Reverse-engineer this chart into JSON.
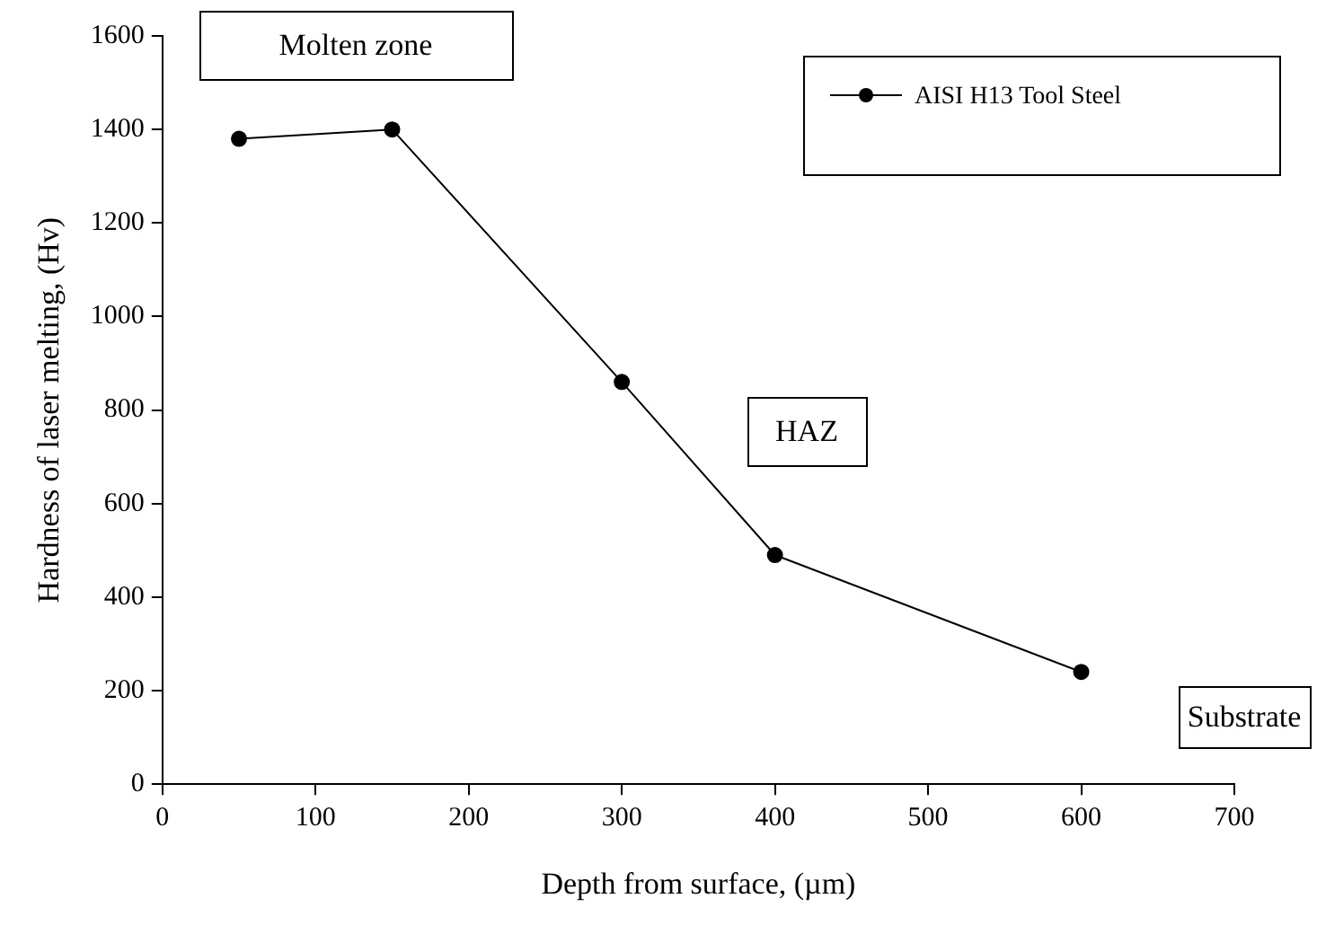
{
  "chart_data": {
    "type": "line",
    "xlabel": "Depth from surface, (µm)",
    "ylabel": "Hardness of laser melting, (Hv)",
    "x": [
      50,
      150,
      300,
      400,
      600
    ],
    "series": [
      {
        "name": "AISI H13 Tool Steel",
        "color": "#000000",
        "values": [
          1380,
          1400,
          860,
          490,
          240
        ]
      }
    ],
    "xlim": [
      0,
      700
    ],
    "xticks": [
      0,
      100,
      200,
      300,
      400,
      500,
      600,
      700
    ],
    "ylim": [
      0,
      1600
    ],
    "yticks": [
      0,
      200,
      400,
      600,
      800,
      1000,
      1200,
      1400,
      1600
    ],
    "grid": false,
    "legend": "top right",
    "marker": "circle",
    "line_style": "solid",
    "annotations": [
      "Molten zone",
      "HAZ",
      "Substrate"
    ]
  }
}
